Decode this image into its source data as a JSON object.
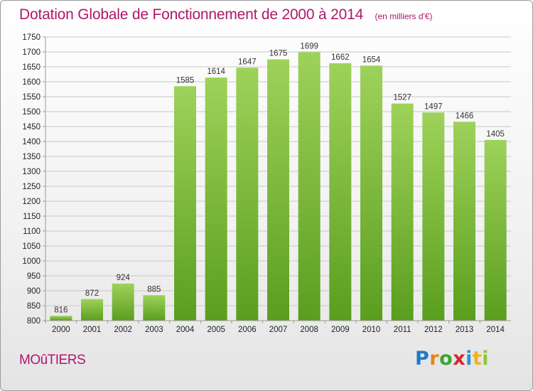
{
  "header": {
    "title": "Dotation Globale de Fonctionnement de 2000 à 2014",
    "subtitle": "(en milliers d'€)"
  },
  "footer": {
    "commune": "MOûTIERS",
    "logo_letters": [
      "P",
      "r",
      "o",
      "x",
      "i",
      "t",
      "i"
    ],
    "logo_colors": [
      "#1f78c8",
      "#e8821e",
      "#3aa636",
      "#d6262e",
      "#2f8fd8",
      "#f0b21e",
      "#8dc63f"
    ]
  },
  "colors": {
    "bar_light": "#9ed25a",
    "bar_dark": "#5a9e1e",
    "grid": "#c8c8c8",
    "title": "#b0176a"
  },
  "chart_data": {
    "type": "bar",
    "title": "Dotation Globale de Fonctionnement de 2000 à 2014",
    "subtitle": "(en milliers d'€)",
    "categories": [
      "2000",
      "2001",
      "2002",
      "2003",
      "2004",
      "2005",
      "2006",
      "2007",
      "2008",
      "2009",
      "2010",
      "2011",
      "2012",
      "2013",
      "2014"
    ],
    "values": [
      816,
      872,
      924,
      885,
      1585,
      1614,
      1647,
      1675,
      1699,
      1662,
      1654,
      1527,
      1497,
      1466,
      1405
    ],
    "ylim": [
      800,
      1750
    ],
    "yticks": [
      800,
      850,
      900,
      950,
      1000,
      1050,
      1100,
      1150,
      1200,
      1250,
      1300,
      1350,
      1400,
      1450,
      1500,
      1550,
      1600,
      1650,
      1700,
      1750
    ],
    "grid": true,
    "legend": "none"
  }
}
